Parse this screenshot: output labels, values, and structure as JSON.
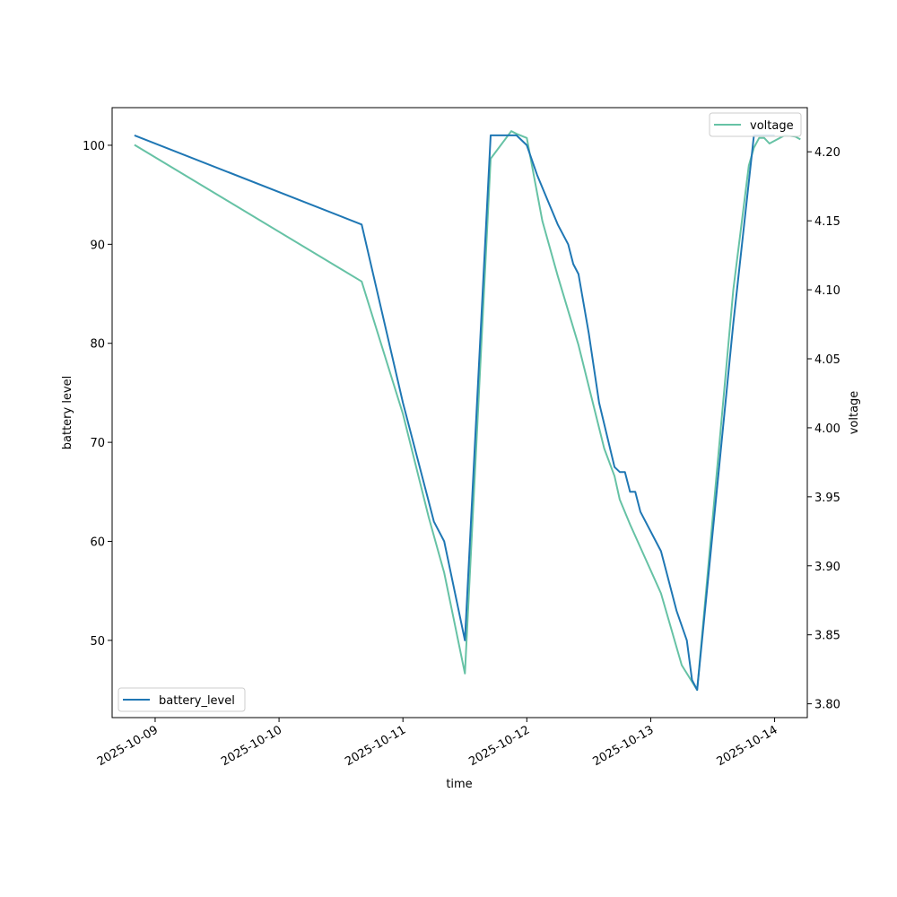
{
  "chart_data": {
    "type": "line",
    "xlabel": "time",
    "ylabel_left": "battery level",
    "ylabel_right": "voltage",
    "x_ticks": [
      "2025-10-09",
      "2025-10-10",
      "2025-10-11",
      "2025-10-12",
      "2025-10-13",
      "2025-10-14"
    ],
    "y_left_ticks": [
      "50",
      "60",
      "70",
      "80",
      "90",
      "100"
    ],
    "y_right_ticks": [
      "3.80",
      "3.85",
      "3.90",
      "3.95",
      "4.00",
      "4.05",
      "4.10",
      "4.15",
      "4.20"
    ],
    "xlim": [
      "2025-10-08 15:40",
      "2025-10-14 06:20"
    ],
    "ylim_left": [
      42.2,
      103.8
    ],
    "ylim_right": [
      3.79,
      4.232
    ],
    "grid": false,
    "series": [
      {
        "name": "battery_level",
        "axis": "left",
        "color": "#1f77b4",
        "legend_position": "lower-left",
        "points": [
          [
            "2025-10-08 20:00",
            101
          ],
          [
            "2025-10-10 16:00",
            92
          ],
          [
            "2025-10-11 00:00",
            74
          ],
          [
            "2025-10-11 05:00",
            64
          ],
          [
            "2025-10-11 06:00",
            62
          ],
          [
            "2025-10-11 08:00",
            60
          ],
          [
            "2025-10-11 12:00",
            50
          ],
          [
            "2025-10-11 17:00",
            101
          ],
          [
            "2025-10-11 22:00",
            101
          ],
          [
            "2025-10-12 00:00",
            100
          ],
          [
            "2025-10-12 02:00",
            97
          ],
          [
            "2025-10-12 04:00",
            94.5
          ],
          [
            "2025-10-12 06:00",
            92
          ],
          [
            "2025-10-12 08:00",
            90
          ],
          [
            "2025-10-12 09:00",
            88
          ],
          [
            "2025-10-12 10:00",
            87
          ],
          [
            "2025-10-12 12:00",
            81
          ],
          [
            "2025-10-12 14:00",
            74
          ],
          [
            "2025-10-12 17:00",
            67.5
          ],
          [
            "2025-10-12 18:00",
            67
          ],
          [
            "2025-10-12 19:00",
            67
          ],
          [
            "2025-10-12 20:00",
            65
          ],
          [
            "2025-10-12 21:00",
            65
          ],
          [
            "2025-10-12 22:00",
            63
          ],
          [
            "2025-10-13 02:00",
            59
          ],
          [
            "2025-10-13 03:00",
            57
          ],
          [
            "2025-10-13 05:00",
            53
          ],
          [
            "2025-10-13 07:00",
            50
          ],
          [
            "2025-10-13 08:00",
            46
          ],
          [
            "2025-10-13 09:00",
            45
          ],
          [
            "2025-10-13 16:00",
            82
          ],
          [
            "2025-10-13 20:00",
            101
          ],
          [
            "2025-10-14 00:00",
            101
          ]
        ]
      },
      {
        "name": "voltage",
        "axis": "right",
        "color": "#66c2a5",
        "legend_position": "upper-right",
        "points": [
          [
            "2025-10-08 20:00",
            4.205
          ],
          [
            "2025-10-10 16:00",
            4.106
          ],
          [
            "2025-10-11 00:00",
            4.01
          ],
          [
            "2025-10-11 05:00",
            3.935
          ],
          [
            "2025-10-11 08:00",
            3.895
          ],
          [
            "2025-10-11 12:00",
            3.822
          ],
          [
            "2025-10-11 17:00",
            4.195
          ],
          [
            "2025-10-11 21:00",
            4.215
          ],
          [
            "2025-10-11 22:00",
            4.213
          ],
          [
            "2025-10-12 00:00",
            4.21
          ],
          [
            "2025-10-12 03:00",
            4.15
          ],
          [
            "2025-10-12 06:00",
            4.11
          ],
          [
            "2025-10-12 10:00",
            4.06
          ],
          [
            "2025-10-12 15:00",
            3.985
          ],
          [
            "2025-10-12 17:00",
            3.965
          ],
          [
            "2025-10-12 18:00",
            3.948
          ],
          [
            "2025-10-12 20:00",
            3.93
          ],
          [
            "2025-10-12 23:00",
            3.905
          ],
          [
            "2025-10-13 02:00",
            3.88
          ],
          [
            "2025-10-13 06:00",
            3.828
          ],
          [
            "2025-10-13 09:00",
            3.81
          ],
          [
            "2025-10-13 16:00",
            4.1
          ],
          [
            "2025-10-13 19:00",
            4.19
          ],
          [
            "2025-10-13 20:00",
            4.203
          ],
          [
            "2025-10-13 21:00",
            4.21
          ],
          [
            "2025-10-13 22:00",
            4.21
          ],
          [
            "2025-10-13 23:00",
            4.206
          ],
          [
            "2025-10-14 00:00",
            4.208
          ],
          [
            "2025-10-14 02:00",
            4.212
          ],
          [
            "2025-10-14 04:00",
            4.211
          ],
          [
            "2025-10-14 05:00",
            4.209
          ]
        ]
      }
    ]
  }
}
